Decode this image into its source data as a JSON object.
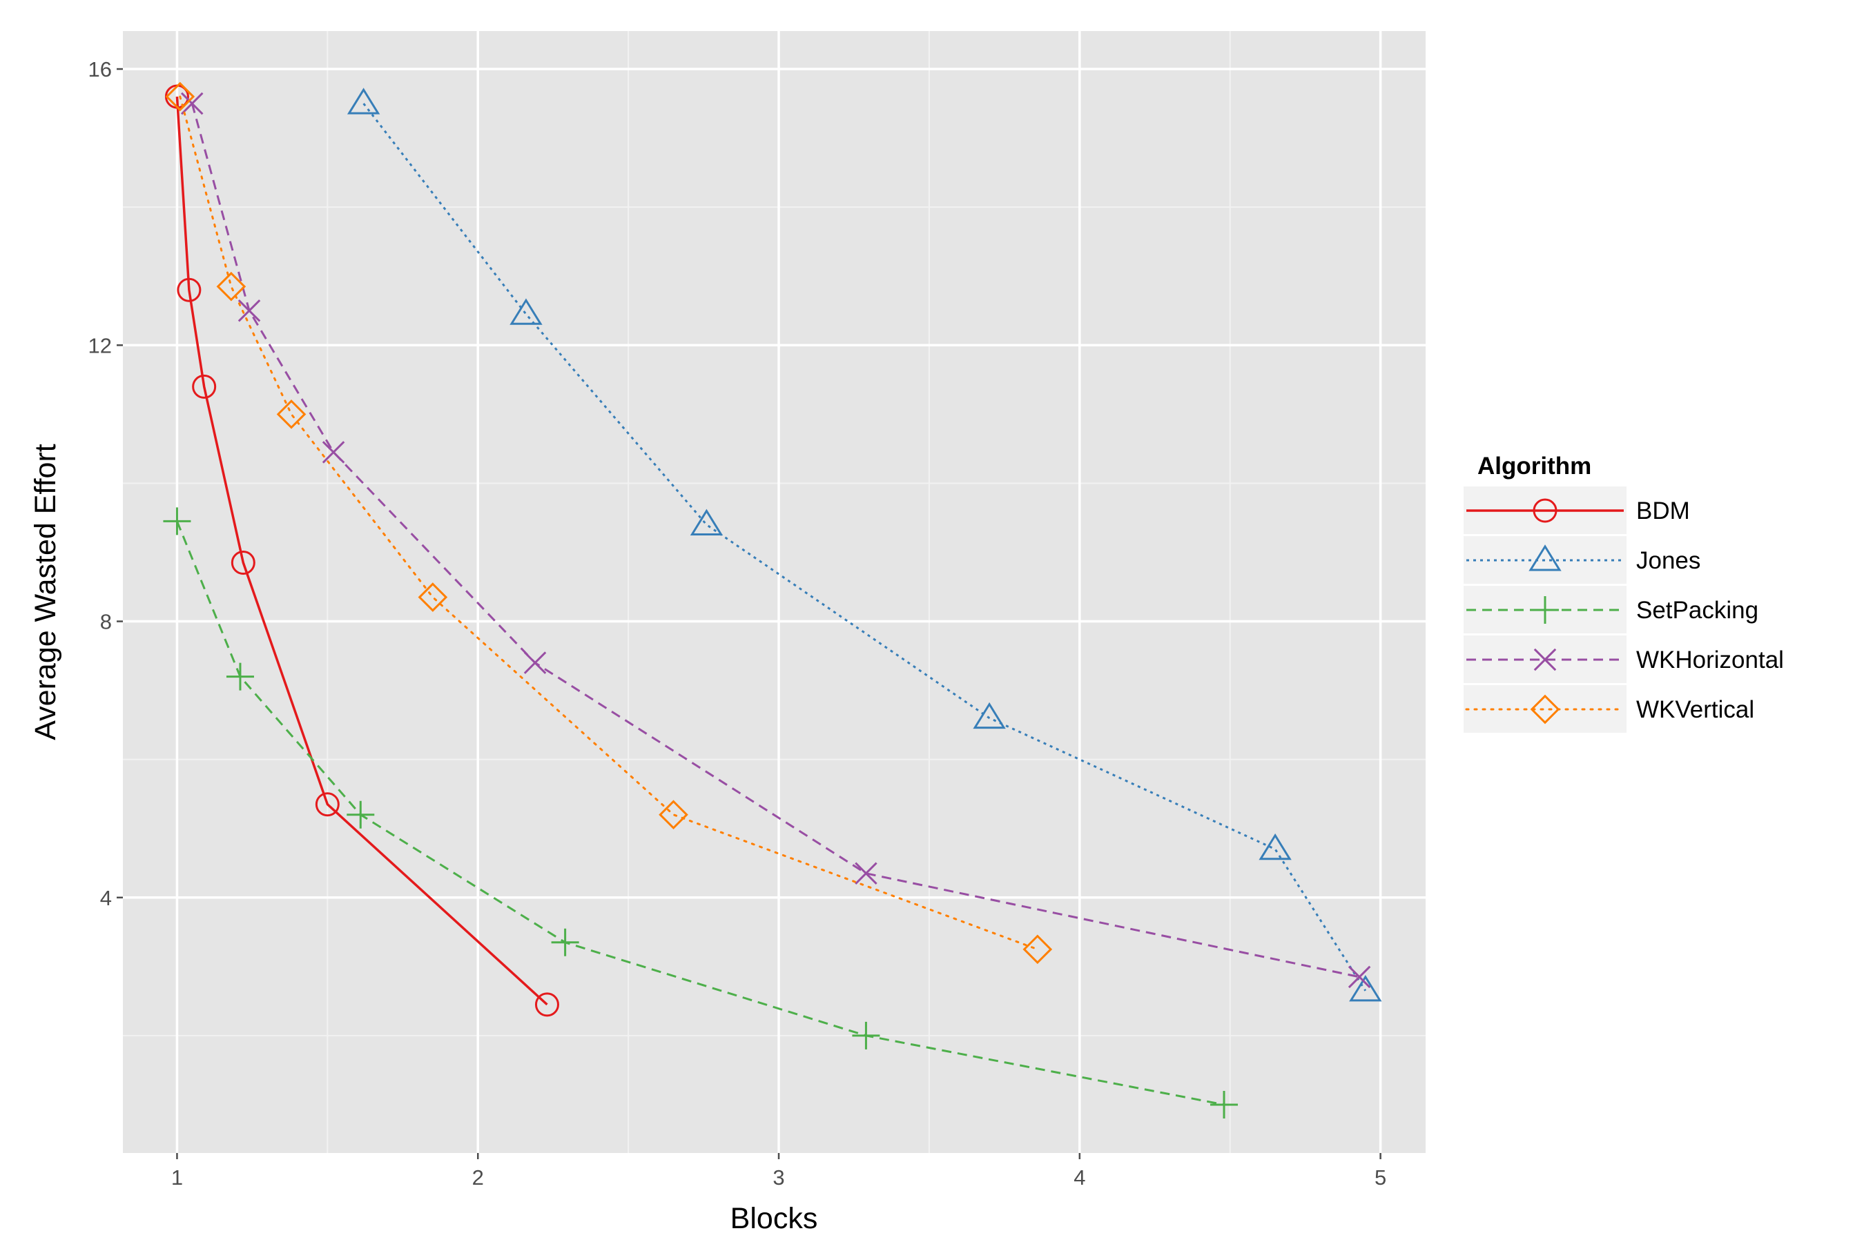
{
  "chart_data": {
    "type": "line",
    "title": "",
    "xlabel": "Blocks",
    "ylabel": "Average Wasted Effort",
    "xlim": [
      0.82,
      5.15
    ],
    "ylim": [
      0.3,
      16.55
    ],
    "x_ticks": [
      1,
      2,
      3,
      4,
      5
    ],
    "y_ticks": [
      4,
      8,
      12,
      16
    ],
    "grid": true,
    "legend_title": "Algorithm",
    "legend_position": "right",
    "series": [
      {
        "name": "BDM",
        "color": "#e41a1c",
        "line": "solid",
        "marker": "circle",
        "points": [
          [
            1.0,
            15.6
          ],
          [
            1.04,
            12.8
          ],
          [
            1.09,
            11.4
          ],
          [
            1.22,
            8.85
          ],
          [
            1.5,
            5.35
          ],
          [
            2.23,
            2.45
          ]
        ]
      },
      {
        "name": "Jones",
        "color": "#377eb8",
        "line": "dotted-fine",
        "marker": "triangle",
        "points": [
          [
            1.62,
            15.5
          ],
          [
            2.16,
            12.45
          ],
          [
            2.76,
            9.4
          ],
          [
            3.7,
            6.6
          ],
          [
            4.65,
            4.7
          ],
          [
            4.95,
            2.65
          ]
        ]
      },
      {
        "name": "SetPacking",
        "color": "#4daf4a",
        "line": "dashed",
        "marker": "plus",
        "points": [
          [
            1.0,
            9.45
          ],
          [
            1.21,
            7.2
          ],
          [
            1.61,
            5.2
          ],
          [
            2.29,
            3.35
          ],
          [
            3.29,
            2.0
          ],
          [
            4.48,
            1.0
          ]
        ]
      },
      {
        "name": "WKHorizontal",
        "color": "#984ea3",
        "line": "dashed",
        "marker": "cross",
        "points": [
          [
            1.05,
            15.5
          ],
          [
            1.24,
            12.5
          ],
          [
            1.52,
            10.45
          ],
          [
            2.19,
            7.4
          ],
          [
            3.29,
            4.35
          ],
          [
            4.93,
            2.85
          ]
        ]
      },
      {
        "name": "WKVertical",
        "color": "#ff7f00",
        "line": "dotted",
        "marker": "diamond",
        "points": [
          [
            1.01,
            15.6
          ],
          [
            1.18,
            12.85
          ],
          [
            1.38,
            11.0
          ],
          [
            1.85,
            8.35
          ],
          [
            2.65,
            5.2
          ],
          [
            3.86,
            3.25
          ]
        ]
      }
    ]
  }
}
